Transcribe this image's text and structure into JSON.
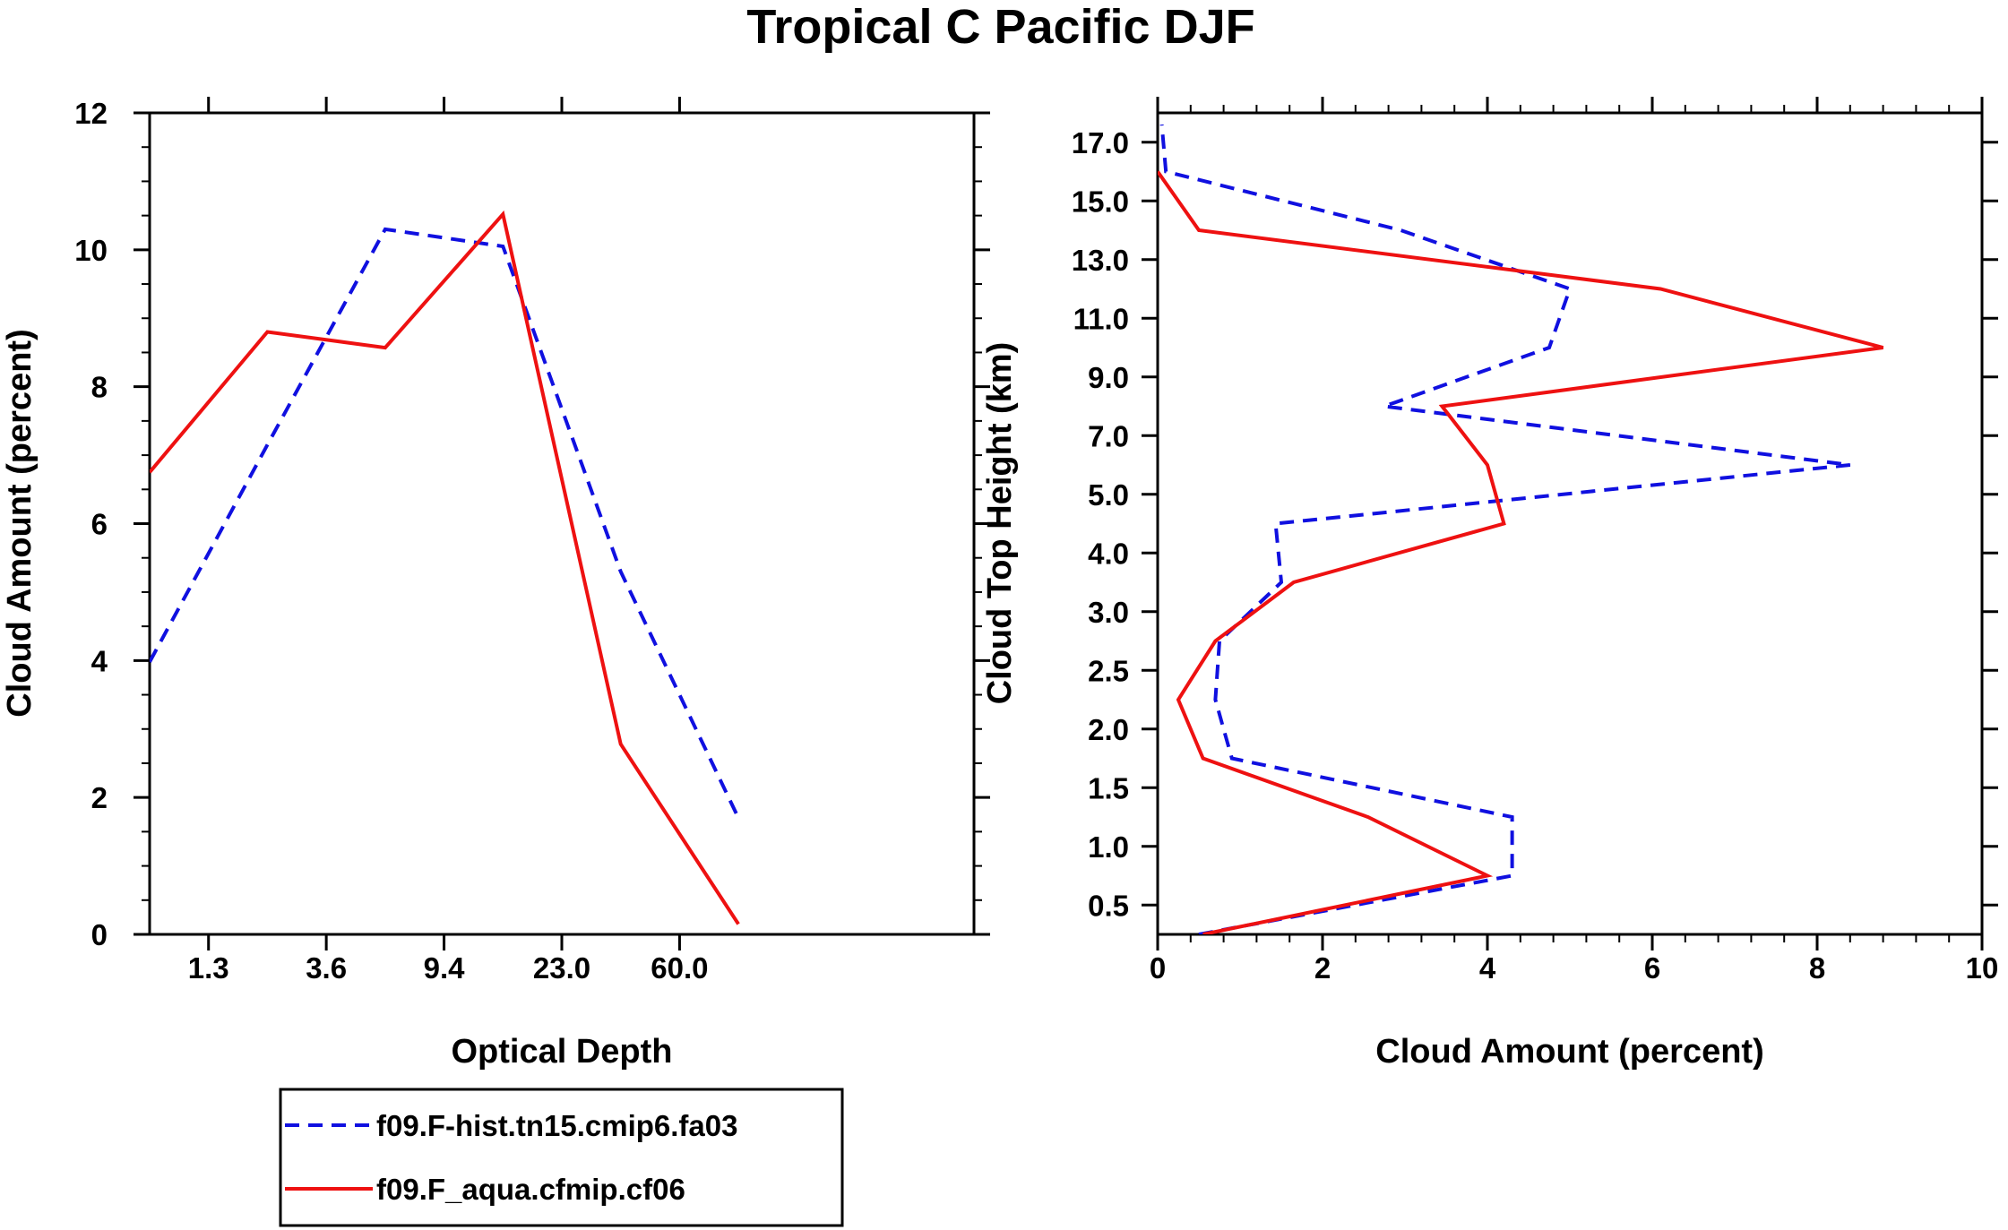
{
  "title": "Tropical C Pacific DJF",
  "colors": {
    "series1": "#1010e0",
    "series2": "#ee1111",
    "axis": "#000000"
  },
  "legend": {
    "entries": [
      {
        "label": "f09.F-hist.tn15.cmip6.fa03",
        "style": "dashed",
        "color": "#1010e0"
      },
      {
        "label": "f09.F_aqua.cfmip.cf06",
        "style": "solid",
        "color": "#ee1111"
      }
    ],
    "placement": "bottom-left"
  },
  "chart_data": [
    {
      "type": "line",
      "xlabel": "Optical Depth",
      "ylabel": "Cloud Amount (percent)",
      "xlim": [
        0,
        7
      ],
      "ylim": [
        0,
        12
      ],
      "x_ticks": [
        {
          "value": 0.5,
          "label": "1.3"
        },
        {
          "value": 1.5,
          "label": "3.6"
        },
        {
          "value": 2.5,
          "label": "9.4"
        },
        {
          "value": 3.5,
          "label": "23.0"
        },
        {
          "value": 4.5,
          "label": "60.0"
        }
      ],
      "y_ticks": [
        {
          "value": 0,
          "label": "0"
        },
        {
          "value": 2,
          "label": "2"
        },
        {
          "value": 4,
          "label": "4"
        },
        {
          "value": 6,
          "label": "6"
        },
        {
          "value": 8,
          "label": "8"
        },
        {
          "value": 10,
          "label": "10"
        },
        {
          "value": 12,
          "label": "12"
        }
      ],
      "series": [
        {
          "name": "f09.F-hist.tn15.cmip6.fa03",
          "x": [
            0,
            1,
            2,
            3,
            4,
            5
          ],
          "y": [
            3.98,
            7.15,
            10.3,
            10.05,
            5.3,
            1.7
          ]
        },
        {
          "name": "f09.F_aqua.cfmip.cf06",
          "x": [
            0,
            1,
            2,
            3,
            4,
            5
          ],
          "y": [
            6.75,
            8.8,
            8.57,
            10.52,
            2.78,
            0.15
          ]
        }
      ]
    },
    {
      "type": "line",
      "xlabel": "Cloud Amount (percent)",
      "ylabel": "Cloud Top Height (km)",
      "xlim": [
        0,
        10
      ],
      "ylim": [
        0,
        14
      ],
      "x_ticks": [
        {
          "value": 0,
          "label": "0"
        },
        {
          "value": 2,
          "label": "2"
        },
        {
          "value": 4,
          "label": "4"
        },
        {
          "value": 6,
          "label": "6"
        },
        {
          "value": 8,
          "label": "8"
        },
        {
          "value": 10,
          "label": "10"
        }
      ],
      "y_ticks": [
        {
          "value": 0.5,
          "label": "0.5"
        },
        {
          "value": 1.5,
          "label": "1.0"
        },
        {
          "value": 2.5,
          "label": "1.5"
        },
        {
          "value": 3.5,
          "label": "2.0"
        },
        {
          "value": 4.5,
          "label": "2.5"
        },
        {
          "value": 5.5,
          "label": "3.0"
        },
        {
          "value": 6.5,
          "label": "4.0"
        },
        {
          "value": 7.5,
          "label": "5.0"
        },
        {
          "value": 8.5,
          "label": "7.0"
        },
        {
          "value": 9.5,
          "label": "9.0"
        },
        {
          "value": 10.5,
          "label": "11.0"
        },
        {
          "value": 11.5,
          "label": "13.0"
        },
        {
          "value": 12.5,
          "label": "15.0"
        },
        {
          "value": 13.5,
          "label": "17.0"
        }
      ],
      "series": [
        {
          "name": "f09.F-hist.tn15.cmip6.fa03",
          "x": [
            0.5,
            4.3,
            4.3,
            0.9,
            0.7,
            0.75,
            1.5,
            1.43,
            8.4,
            2.75,
            4.75,
            5.0,
            2.95,
            0.1,
            0.05
          ],
          "y": [
            0,
            1,
            2,
            3,
            4,
            5,
            6,
            7,
            8,
            9,
            10,
            11,
            12,
            13,
            13.8
          ]
        },
        {
          "name": "f09.F_aqua.cfmip.cf06",
          "x": [
            0.55,
            4.0,
            2.55,
            0.55,
            0.25,
            0.7,
            1.65,
            4.2,
            4.0,
            3.45,
            8.8,
            6.1,
            0.5,
            0.0
          ],
          "y": [
            0,
            1,
            2,
            3,
            4,
            5,
            6,
            7,
            8,
            9,
            10,
            11,
            12,
            13
          ]
        }
      ]
    }
  ]
}
